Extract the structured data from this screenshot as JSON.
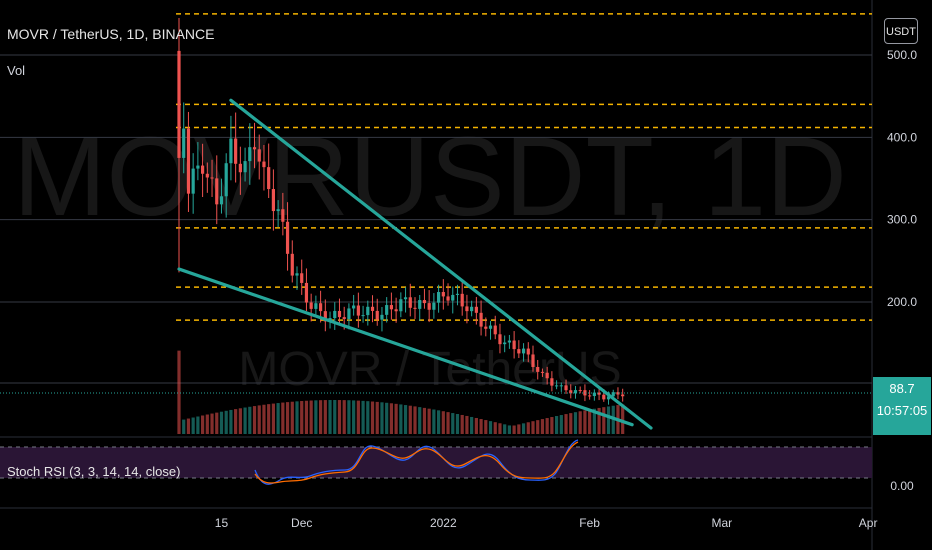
{
  "header": {
    "symbol_title": "MOVR / TetherUS, 1D, BINANCE",
    "vol_label": "Vol",
    "stoch_label": "Stoch RSI (3, 3, 14, 14, close)",
    "currency_button": "USDT"
  },
  "watermark": {
    "big": "MOVRUSDT, 1D",
    "small": "MOVR / TetherUS"
  },
  "last_price": {
    "value": "88.7",
    "countdown": "10:57:05"
  },
  "colors": {
    "up": "#26a69a",
    "down": "#ef5350",
    "trendline": "#26a69a",
    "sr_level": "#f5b400",
    "stoch_band": "#2a1535",
    "stoch_k": "#2962ff",
    "stoch_d": "#ff6d00"
  },
  "chart_data": {
    "type": "candlestick",
    "title": "MOVR / TetherUS, 1D, BINANCE",
    "y_axis": {
      "ticks": [
        "500.0",
        "400.0",
        "300.0",
        "200.0"
      ],
      "range": [
        45,
        545
      ]
    },
    "x_axis": {
      "ticks": [
        "15",
        "Dec",
        "2022",
        "Feb",
        "Mar",
        "Apr"
      ]
    },
    "horizontal_levels": [
      550,
      440,
      412,
      290,
      218,
      178
    ],
    "trendlines": [
      {
        "name": "upper",
        "from": {
          "x": "Nov 17",
          "y": 445
        },
        "to": {
          "x": "Feb 14",
          "y": 47
        }
      },
      {
        "name": "lower",
        "from": {
          "x": "Nov 6",
          "y": 240
        },
        "to": {
          "x": "Feb 10",
          "y": 51
        }
      }
    ],
    "ohlc_sample": [
      {
        "date": "Nov 6",
        "o": 505,
        "h": 545,
        "l": 236,
        "c": 375
      },
      {
        "date": "Nov 14",
        "o": 330,
        "h": 420,
        "l": 300,
        "c": 385
      },
      {
        "date": "Nov 21",
        "o": 390,
        "h": 425,
        "l": 315,
        "c": 350
      },
      {
        "date": "Dec 3",
        "o": 230,
        "h": 235,
        "l": 180,
        "c": 195
      },
      {
        "date": "Dec 20",
        "o": 200,
        "h": 220,
        "l": 182,
        "c": 195
      },
      {
        "date": "Dec 27",
        "o": 205,
        "h": 243,
        "l": 190,
        "c": 210
      },
      {
        "date": "Jan 10",
        "o": 175,
        "h": 190,
        "l": 150,
        "c": 165
      },
      {
        "date": "Jan 22",
        "o": 120,
        "h": 125,
        "l": 95,
        "c": 100
      },
      {
        "date": "Feb 8",
        "o": 82,
        "h": 100,
        "l": 75,
        "c": 89
      }
    ],
    "stoch_rsi": {
      "axis_ticks": [
        "0.00"
      ]
    }
  }
}
